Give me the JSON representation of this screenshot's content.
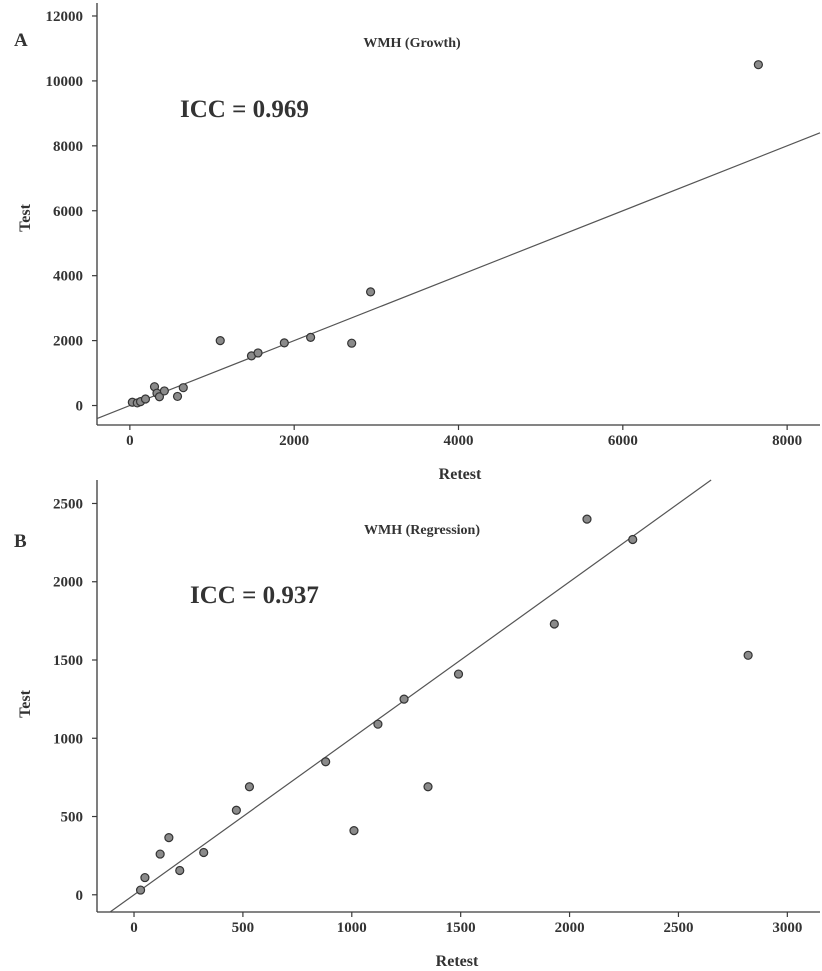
{
  "chart_data": [
    {
      "type": "scatter",
      "panel": "A",
      "title": "WMH (Growth)",
      "annotation": "ICC = 0.969",
      "xlabel": "Retest",
      "ylabel": "Test",
      "xlim": [
        -400,
        8400
      ],
      "ylim": [
        -600,
        12400
      ],
      "xticks": [
        0,
        2000,
        4000,
        6000,
        8000
      ],
      "yticks": [
        0,
        2000,
        4000,
        6000,
        8000,
        10000,
        12000
      ],
      "reference_line": "y = x",
      "grid": false,
      "points": [
        {
          "x": 30,
          "y": 100
        },
        {
          "x": 90,
          "y": 80
        },
        {
          "x": 130,
          "y": 120
        },
        {
          "x": 190,
          "y": 200
        },
        {
          "x": 300,
          "y": 580
        },
        {
          "x": 330,
          "y": 380
        },
        {
          "x": 360,
          "y": 270
        },
        {
          "x": 420,
          "y": 450
        },
        {
          "x": 580,
          "y": 280
        },
        {
          "x": 650,
          "y": 550
        },
        {
          "x": 1100,
          "y": 2000
        },
        {
          "x": 1480,
          "y": 1530
        },
        {
          "x": 1560,
          "y": 1620
        },
        {
          "x": 1880,
          "y": 1930
        },
        {
          "x": 2200,
          "y": 2100
        },
        {
          "x": 2700,
          "y": 1920
        },
        {
          "x": 2930,
          "y": 3500
        },
        {
          "x": 7650,
          "y": 10500
        }
      ]
    },
    {
      "type": "scatter",
      "panel": "B",
      "title": "WMH (Regression)",
      "annotation": "ICC = 0.937",
      "xlabel": "Retest",
      "ylabel": "Test",
      "xlim": [
        -170,
        3150
      ],
      "ylim": [
        -110,
        2650
      ],
      "xticks": [
        0,
        500,
        1000,
        1500,
        2000,
        2500,
        3000
      ],
      "yticks": [
        0,
        500,
        1000,
        1500,
        2000,
        2500
      ],
      "reference_line": "y = x",
      "grid": false,
      "points": [
        {
          "x": 30,
          "y": 30
        },
        {
          "x": 50,
          "y": 110
        },
        {
          "x": 120,
          "y": 260
        },
        {
          "x": 160,
          "y": 365
        },
        {
          "x": 210,
          "y": 155
        },
        {
          "x": 320,
          "y": 270
        },
        {
          "x": 470,
          "y": 540
        },
        {
          "x": 530,
          "y": 690
        },
        {
          "x": 880,
          "y": 850
        },
        {
          "x": 1010,
          "y": 410
        },
        {
          "x": 1120,
          "y": 1090
        },
        {
          "x": 1240,
          "y": 1250
        },
        {
          "x": 1350,
          "y": 690
        },
        {
          "x": 1490,
          "y": 1410
        },
        {
          "x": 1930,
          "y": 1730
        },
        {
          "x": 2080,
          "y": 2400
        },
        {
          "x": 2290,
          "y": 2270
        },
        {
          "x": 2820,
          "y": 1530
        }
      ]
    }
  ]
}
